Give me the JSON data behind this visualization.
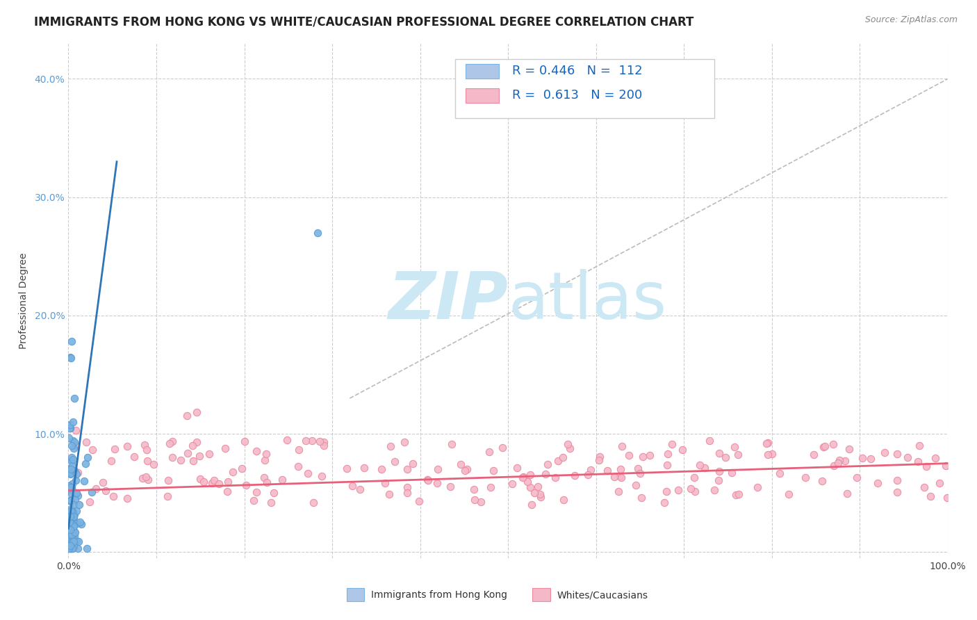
{
  "title": "IMMIGRANTS FROM HONG KONG VS WHITE/CAUCASIAN PROFESSIONAL DEGREE CORRELATION CHART",
  "source": "Source: ZipAtlas.com",
  "ylabel": "Professional Degree",
  "xlim": [
    0,
    1.0
  ],
  "ylim": [
    -0.005,
    0.43
  ],
  "xticks": [
    0,
    0.1,
    0.2,
    0.3,
    0.4,
    0.5,
    0.6,
    0.7,
    0.8,
    0.9,
    1.0
  ],
  "xticklabels": [
    "0.0%",
    "",
    "",
    "",
    "",
    "",
    "",
    "",
    "",
    "",
    "100.0%"
  ],
  "yticks": [
    0,
    0.1,
    0.2,
    0.3,
    0.4
  ],
  "yticklabels": [
    "",
    "10.0%",
    "20.0%",
    "30.0%",
    "40.0%"
  ],
  "legend_entries": [
    {
      "label": "Immigrants from Hong Kong",
      "R": "0.446",
      "N": "112"
    },
    {
      "label": "Whites/Caucasians",
      "R": "0.613",
      "N": "200"
    }
  ],
  "blue_line_x": [
    0.0,
    0.055
  ],
  "blue_line_y": [
    0.02,
    0.33
  ],
  "pink_line_x": [
    0.0,
    1.0
  ],
  "pink_line_y": [
    0.052,
    0.075
  ],
  "diag_line_x": [
    0.32,
    1.0
  ],
  "diag_line_y": [
    0.13,
    0.4
  ],
  "watermark_zip": "ZIP",
  "watermark_atlas": "atlas",
  "watermark_color": "#cde8f5",
  "background_color": "#ffffff",
  "grid_color": "#cccccc",
  "blue_dot_color": "#7ab3e0",
  "blue_dot_edge": "#5b9bd5",
  "pink_dot_color": "#f4b8c8",
  "pink_dot_edge": "#e88aa0",
  "blue_line_color": "#2e75b6",
  "pink_line_color": "#e85f7a",
  "diag_line_color": "#bbbbbb",
  "title_fontsize": 12,
  "axis_label_fontsize": 10,
  "tick_fontsize": 10,
  "legend_color": "#1565c0",
  "legend_R_color": "#1565c0"
}
